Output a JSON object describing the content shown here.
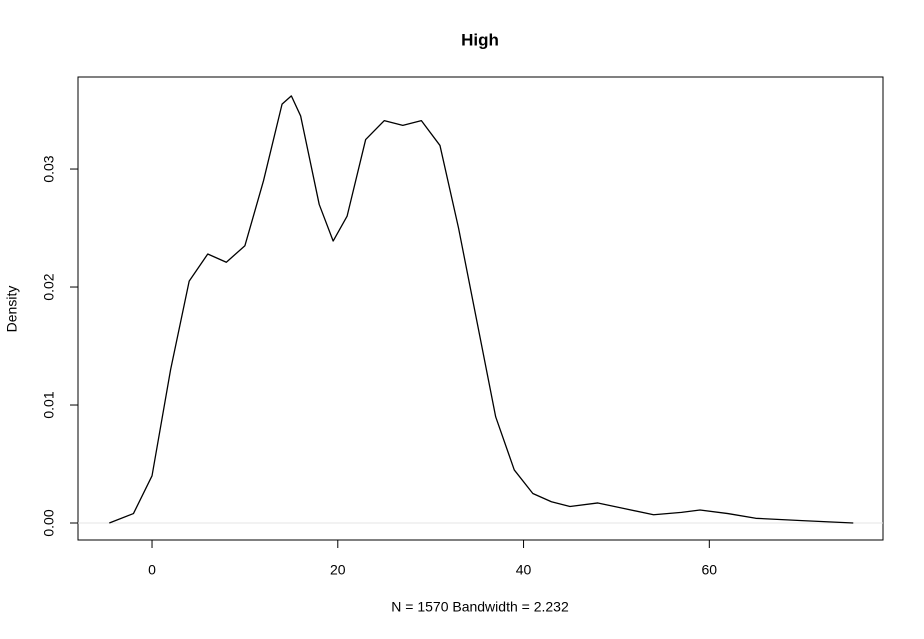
{
  "chart_data": {
    "type": "line",
    "title": "High",
    "xlabel": "N = 1570   Bandwidth = 2.232",
    "ylabel": "Density",
    "x": [
      -4.6,
      -2,
      0,
      2,
      4,
      6,
      8,
      10,
      12,
      14,
      15,
      16,
      18,
      19.5,
      21,
      23,
      25,
      27,
      29,
      31,
      33,
      35,
      37,
      39,
      41,
      43,
      45,
      48,
      51,
      54,
      57,
      59,
      62,
      65,
      70,
      75.5
    ],
    "series": [
      {
        "color": "#000000",
        "values": [
          0,
          0.0008,
          0.004,
          0.013,
          0.0205,
          0.0228,
          0.0221,
          0.0235,
          0.029,
          0.0355,
          0.0362,
          0.0345,
          0.027,
          0.0239,
          0.026,
          0.0325,
          0.0341,
          0.0337,
          0.0341,
          0.032,
          0.025,
          0.017,
          0.009,
          0.0045,
          0.0025,
          0.0018,
          0.0014,
          0.0017,
          0.0012,
          0.0007,
          0.0009,
          0.0011,
          0.0008,
          0.0004,
          0.0002,
          0
        ]
      }
    ],
    "xlim": [
      -7.97,
      78.7
    ],
    "ylim": [
      -0.00144,
      0.0378
    ],
    "xticks": [
      0,
      20,
      40,
      60
    ],
    "yticks": [
      {
        "value": 0,
        "label": "0.00"
      },
      {
        "value": 0.01,
        "label": "0.01"
      },
      {
        "value": 0.02,
        "label": "0.02"
      },
      {
        "value": 0.03,
        "label": "0.03"
      }
    ],
    "reference_line": {
      "y": 0,
      "color": "#e6e6e6"
    }
  }
}
